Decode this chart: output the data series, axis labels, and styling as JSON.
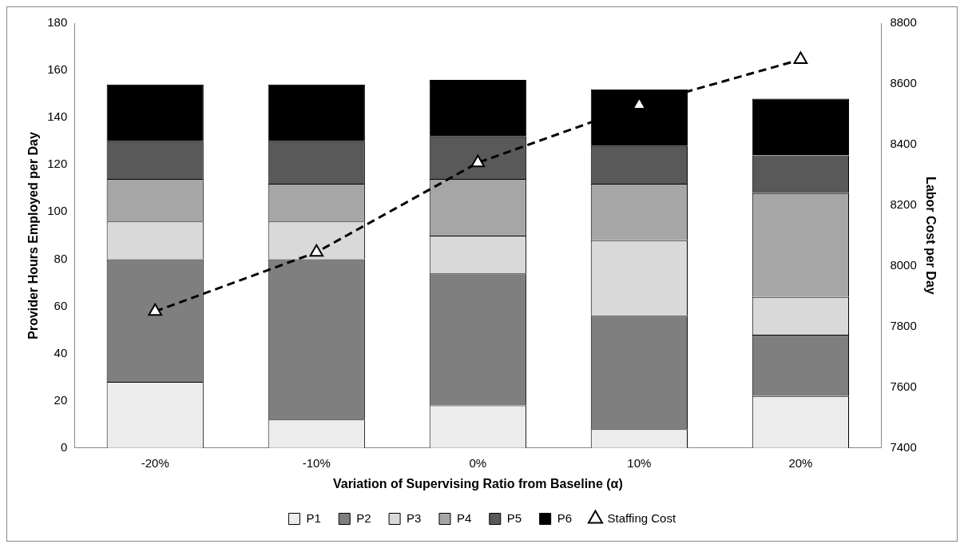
{
  "chart_data": {
    "type": "bar",
    "stacked": true,
    "xlabel": "Variation of Supervising Ratio from Baseline (α)",
    "ylabel": "Provider Hours Employed per Day",
    "y2label": "Labor Cost per Day",
    "categories": [
      "-20%",
      "-10%",
      "0%",
      "10%",
      "20%"
    ],
    "series": [
      {
        "name": "P1",
        "color": "#ececec",
        "values": [
          28,
          12,
          18,
          8,
          22
        ]
      },
      {
        "name": "P2",
        "color": "#7f7f7f",
        "values": [
          52,
          68,
          56,
          48,
          26
        ]
      },
      {
        "name": "P3",
        "color": "#d9d9d9",
        "values": [
          16,
          16,
          16,
          32,
          16
        ]
      },
      {
        "name": "P4",
        "color": "#a6a6a6",
        "values": [
          18,
          16,
          24,
          24,
          44
        ]
      },
      {
        "name": "P5",
        "color": "#595959",
        "values": [
          16,
          18,
          18,
          16,
          16
        ]
      },
      {
        "name": "P6",
        "color": "#000000",
        "values": [
          24,
          24,
          24,
          24,
          24
        ]
      },
      {
        "name": "Staffing Cost",
        "type": "line",
        "axis": "y2",
        "color": "#000000",
        "marker": "triangle",
        "line_style": "dashed",
        "values": [
          7850,
          8045,
          8340,
          8530,
          8680
        ]
      }
    ],
    "ylim": [
      0,
      180
    ],
    "yticks": [
      0,
      20,
      40,
      60,
      80,
      100,
      120,
      140,
      160,
      180
    ],
    "y2lim": [
      7400,
      8800
    ],
    "y2ticks": [
      7400,
      7600,
      7800,
      8000,
      8200,
      8400,
      8600,
      8800
    ],
    "grid": false,
    "legend": "bottom"
  }
}
